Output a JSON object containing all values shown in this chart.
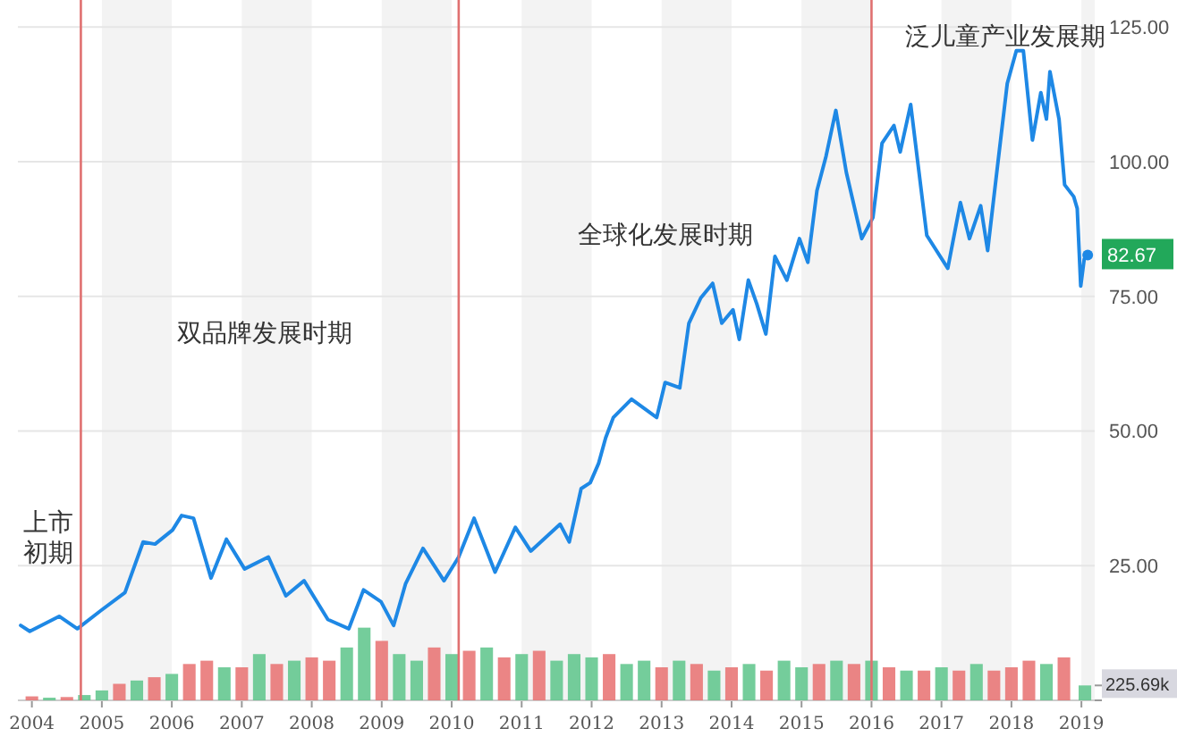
{
  "chart_data": {
    "type": "line",
    "xlim": [
      2003.8,
      2019.19
    ],
    "xticks": [
      2004,
      2005,
      2006,
      2007,
      2008,
      2009,
      2010,
      2011,
      2012,
      2013,
      2014,
      2015,
      2016,
      2017,
      2018,
      2019
    ],
    "ylim": [
      0,
      130
    ],
    "yticks": [
      {
        "value": 25,
        "label": "25.00"
      },
      {
        "value": 50,
        "label": "50.00"
      },
      {
        "value": 75,
        "label": "75.00"
      },
      {
        "value": 100,
        "label": "100.00"
      },
      {
        "value": 125,
        "label": "125.00"
      }
    ],
    "y2lim": [
      0,
      10600
    ],
    "y2ticks": [
      {
        "value": 0,
        "label": null
      },
      {
        "value": 225.69,
        "label": "225.69k"
      }
    ],
    "grid": "y",
    "series": [
      {
        "type": "bar",
        "axis": "y2",
        "x": [
          2004,
          2004.25,
          2004.5,
          2004.75,
          2005,
          2005.25,
          2005.5,
          2005.75,
          2006,
          2006.25,
          2006.5,
          2006.75,
          2007,
          2007.25,
          2007.5,
          2007.75,
          2008,
          2008.25,
          2008.5,
          2008.75,
          2009,
          2009.25,
          2009.5,
          2009.75,
          2010,
          2010.25,
          2010.5,
          2010.75,
          2011,
          2011.25,
          2011.5,
          2011.75,
          2012,
          2012.25,
          2012.5,
          2012.75,
          2013,
          2013.25,
          2013.5,
          2013.75,
          2014,
          2014.25,
          2014.5,
          2014.75,
          2015,
          2015.25,
          2015.5,
          2015.75,
          2016,
          2016.25,
          2016.5,
          2016.75,
          2017,
          2017.25,
          2017.5,
          2017.75,
          2018,
          2018.25,
          2018.5,
          2018.75,
          2019.05
        ],
        "values": [
          60,
          40,
          50,
          80,
          150,
          250,
          300,
          350,
          400,
          550,
          600,
          500,
          500,
          700,
          550,
          600,
          650,
          600,
          800,
          1100,
          900,
          700,
          600,
          800,
          700,
          750,
          800,
          650,
          700,
          750,
          600,
          700,
          650,
          700,
          550,
          600,
          500,
          600,
          550,
          450,
          500,
          550,
          450,
          600,
          500,
          550,
          600,
          550,
          600,
          500,
          450,
          450,
          500,
          450,
          550,
          450,
          500,
          600,
          550,
          650,
          225.69
        ],
        "colors": [
          "#e87070",
          "#5cc48a",
          "#e87070",
          "#5cc48a",
          "#5cc48a",
          "#e87070",
          "#5cc48a",
          "#e87070",
          "#5cc48a",
          "#e87070",
          "#e87070",
          "#5cc48a",
          "#e87070",
          "#5cc48a",
          "#e87070",
          "#5cc48a",
          "#e87070",
          "#e87070",
          "#5cc48a",
          "#5cc48a",
          "#e87070",
          "#5cc48a",
          "#5cc48a",
          "#e87070",
          "#5cc48a",
          "#e87070",
          "#5cc48a",
          "#e87070",
          "#5cc48a",
          "#e87070",
          "#5cc48a",
          "#5cc48a",
          "#5cc48a",
          "#e87070",
          "#5cc48a",
          "#5cc48a",
          "#e87070",
          "#5cc48a",
          "#e87070",
          "#5cc48a",
          "#e87070",
          "#5cc48a",
          "#e87070",
          "#5cc48a",
          "#5cc48a",
          "#e87070",
          "#5cc48a",
          "#e87070",
          "#5cc48a",
          "#e87070",
          "#5cc48a",
          "#e87070",
          "#5cc48a",
          "#e87070",
          "#5cc48a",
          "#e87070",
          "#e87070",
          "#e87070",
          "#5cc48a",
          "#e87070",
          "#5cc48a"
        ],
        "value_labels": [
          null,
          null,
          null,
          null,
          null,
          null,
          null,
          null,
          null,
          null,
          null,
          null,
          null,
          null,
          null,
          null,
          null,
          null,
          null,
          null,
          null,
          null,
          null,
          null,
          null,
          null,
          null,
          null,
          null,
          null,
          null,
          null,
          null,
          null,
          null,
          null,
          null,
          null,
          null,
          null,
          null,
          null,
          null,
          null,
          null,
          null,
          null,
          null,
          null,
          null,
          null,
          null,
          null,
          null,
          null,
          null,
          null,
          null,
          null,
          null,
          null
        ]
      },
      {
        "color": "#1e88e5",
        "x": [
          2003.84,
          2003.97,
          2004.39,
          2004.65,
          2004.99,
          2005.33,
          2005.59,
          2005.76,
          2006.01,
          2006.14,
          2006.31,
          2006.56,
          2006.78,
          2007.04,
          2007.38,
          2007.63,
          2007.89,
          2008.23,
          2008.53,
          2008.74,
          2008.99,
          2009.17,
          2009.34,
          2009.59,
          2009.89,
          2010.1,
          2010.32,
          2010.62,
          2010.91,
          2011.13,
          2011.55,
          2011.68,
          2011.85,
          2011.98,
          2012.1,
          2012.2,
          2012.31,
          2012.57,
          2012.93,
          2013.05,
          2013.26,
          2013.39,
          2013.56,
          2013.73,
          2013.86,
          2014.02,
          2014.11,
          2014.24,
          2014.36,
          2014.49,
          2014.62,
          2014.79,
          2014.97,
          2015.09,
          2015.22,
          2015.35,
          2015.49,
          2015.64,
          2015.86,
          2016.02,
          2016.15,
          2016.32,
          2016.41,
          2016.56,
          2016.66,
          2016.79,
          2017.09,
          2017.27,
          2017.4,
          2017.56,
          2017.66,
          2017.79,
          2017.94,
          2018.07,
          2018.17,
          2018.3,
          2018.42,
          2018.5,
          2018.55,
          2018.68,
          2018.76,
          2018.89,
          2018.94,
          2018.99,
          2019.04,
          2019.09
        ],
        "values": [
          13.9,
          12.8,
          15.6,
          13.3,
          16.7,
          20,
          29.4,
          29,
          31.6,
          34.3,
          33.8,
          22.7,
          29.9,
          24.4,
          26.6,
          19.4,
          22.2,
          15,
          13.3,
          20.5,
          18.3,
          13.9,
          21.6,
          28.2,
          22.2,
          26.6,
          33.8,
          23.8,
          32.1,
          27.7,
          32.7,
          29.4,
          39.3,
          40.4,
          44,
          48.7,
          52.5,
          55.9,
          52.5,
          59,
          58,
          70,
          74.7,
          77.4,
          70,
          72.5,
          67,
          78,
          73.6,
          68,
          82.4,
          78,
          85.7,
          81.3,
          94.6,
          101,
          109.5,
          98,
          85.7,
          89.6,
          103.4,
          106.7,
          101.8,
          110.6,
          100,
          86.3,
          80.2,
          92.4,
          85.7,
          91.8,
          83.5,
          98,
          114.5,
          120.6,
          120.6,
          104,
          112.8,
          107.9,
          116.7,
          107.9,
          95.7,
          93.5,
          91.3,
          76.9,
          81.9,
          82.67
        ],
        "value_labels": [
          null,
          null,
          null,
          null,
          null,
          null,
          null,
          null,
          null,
          null,
          null,
          null,
          null,
          null,
          null,
          null,
          null,
          null,
          null,
          null,
          null,
          null,
          null,
          null,
          null,
          null,
          null,
          null,
          null,
          null,
          null,
          null,
          null,
          null,
          null,
          null,
          null,
          null,
          null,
          null,
          null,
          null,
          null,
          null,
          null,
          null,
          null,
          null,
          null,
          null,
          null,
          null,
          null,
          null,
          null,
          null,
          null,
          null,
          null,
          null,
          null,
          null,
          null,
          null,
          null,
          null,
          null,
          null,
          null,
          null,
          null,
          null,
          null,
          null,
          null,
          null,
          null,
          null,
          null,
          null,
          null,
          null,
          null,
          null,
          null,
          "82.67"
        ]
      }
    ],
    "ref_lines": [
      {
        "axis": "x",
        "value": 2004.7,
        "color": "#e07070"
      },
      {
        "axis": "x",
        "value": 2010.1,
        "color": "#e07070"
      },
      {
        "axis": "x",
        "value": 2016.0,
        "color": "#e07070"
      }
    ],
    "bands": [
      {
        "axis": "x",
        "from": 2005,
        "to": 2006,
        "color": "#f3f3f3"
      },
      {
        "axis": "x",
        "from": 2007,
        "to": 2008,
        "color": "#f3f3f3"
      },
      {
        "axis": "x",
        "from": 2009,
        "to": 2010,
        "color": "#f3f3f3"
      },
      {
        "axis": "x",
        "from": 2011,
        "to": 2012,
        "color": "#f3f3f3"
      },
      {
        "axis": "x",
        "from": 2013,
        "to": 2014,
        "color": "#f3f3f3"
      },
      {
        "axis": "x",
        "from": 2015,
        "to": 2016,
        "color": "#f3f3f3"
      },
      {
        "axis": "x",
        "from": 2017,
        "to": 2018,
        "color": "#f3f3f3"
      },
      {
        "axis": "x",
        "from": 2019,
        "to": 2019.19,
        "color": "#f3f3f3"
      }
    ],
    "annotations": [
      "上市初期",
      "双品牌发展时期",
      "全球化发展时期",
      "泛儿童产业发展期"
    ]
  }
}
